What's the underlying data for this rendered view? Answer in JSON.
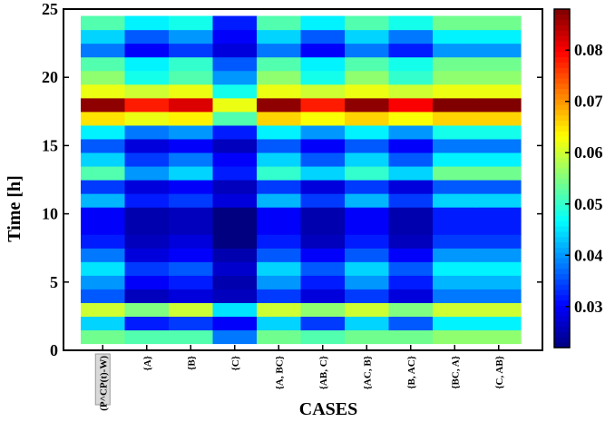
{
  "chart_data": {
    "type": "heatmap",
    "xlabel": "CASES",
    "ylabel": "Time [h]",
    "ylim": [
      0,
      25
    ],
    "y_ticks": [
      0,
      5,
      10,
      15,
      20,
      25
    ],
    "colorbar": {
      "colormap": "jet",
      "range": [
        0.022,
        0.088
      ],
      "ticks": [
        0.03,
        0.04,
        0.05,
        0.06,
        0.07,
        0.08
      ],
      "tick_labels": [
        "0.03",
        "0.04",
        "0.05",
        "0.06",
        "0.07",
        "0.08"
      ]
    },
    "categories": [
      "(P^CP(t)-W)",
      "{A}",
      "{B}",
      "{C}",
      "{A, BC}",
      "{AB, C}",
      "{AC, B}",
      "{B, AC}",
      "{BC, A}",
      "{C, AB}"
    ],
    "hours": [
      1,
      2,
      3,
      4,
      5,
      6,
      7,
      8,
      9,
      10,
      11,
      12,
      13,
      14,
      15,
      16,
      17,
      18,
      19,
      20,
      21,
      22,
      23,
      24
    ],
    "values": [
      [
        0.054,
        0.052,
        0.052,
        0.038,
        0.054,
        0.052,
        0.054,
        0.054,
        0.056,
        0.056
      ],
      [
        0.044,
        0.032,
        0.034,
        0.03,
        0.044,
        0.034,
        0.044,
        0.036,
        0.046,
        0.046
      ],
      [
        0.06,
        0.055,
        0.06,
        0.045,
        0.06,
        0.056,
        0.06,
        0.055,
        0.06,
        0.06
      ],
      [
        0.036,
        0.026,
        0.028,
        0.026,
        0.034,
        0.028,
        0.034,
        0.028,
        0.038,
        0.038
      ],
      [
        0.04,
        0.03,
        0.032,
        0.025,
        0.04,
        0.032,
        0.04,
        0.032,
        0.042,
        0.042
      ],
      [
        0.045,
        0.034,
        0.036,
        0.027,
        0.044,
        0.036,
        0.044,
        0.036,
        0.046,
        0.046
      ],
      [
        0.038,
        0.028,
        0.03,
        0.025,
        0.036,
        0.03,
        0.036,
        0.03,
        0.04,
        0.04
      ],
      [
        0.032,
        0.026,
        0.028,
        0.022,
        0.032,
        0.026,
        0.032,
        0.026,
        0.034,
        0.034
      ],
      [
        0.03,
        0.025,
        0.026,
        0.021,
        0.03,
        0.025,
        0.03,
        0.025,
        0.032,
        0.032
      ],
      [
        0.03,
        0.025,
        0.026,
        0.021,
        0.03,
        0.025,
        0.03,
        0.025,
        0.032,
        0.032
      ],
      [
        0.042,
        0.032,
        0.034,
        0.028,
        0.042,
        0.034,
        0.042,
        0.034,
        0.044,
        0.044
      ],
      [
        0.034,
        0.028,
        0.03,
        0.026,
        0.034,
        0.028,
        0.034,
        0.028,
        0.036,
        0.036
      ],
      [
        0.052,
        0.04,
        0.044,
        0.032,
        0.05,
        0.044,
        0.05,
        0.044,
        0.054,
        0.054
      ],
      [
        0.044,
        0.034,
        0.038,
        0.03,
        0.044,
        0.036,
        0.044,
        0.036,
        0.046,
        0.046
      ],
      [
        0.036,
        0.028,
        0.03,
        0.026,
        0.036,
        0.03,
        0.036,
        0.03,
        0.038,
        0.038
      ],
      [
        0.046,
        0.038,
        0.04,
        0.032,
        0.046,
        0.04,
        0.046,
        0.04,
        0.048,
        0.048
      ],
      [
        0.065,
        0.062,
        0.064,
        0.052,
        0.066,
        0.063,
        0.066,
        0.063,
        0.066,
        0.066
      ],
      [
        0.087,
        0.078,
        0.082,
        0.062,
        0.087,
        0.078,
        0.087,
        0.08,
        0.088,
        0.088
      ],
      [
        0.062,
        0.06,
        0.062,
        0.048,
        0.062,
        0.06,
        0.062,
        0.06,
        0.062,
        0.062
      ],
      [
        0.056,
        0.048,
        0.052,
        0.04,
        0.056,
        0.048,
        0.056,
        0.05,
        0.056,
        0.056
      ],
      [
        0.052,
        0.046,
        0.05,
        0.036,
        0.052,
        0.046,
        0.052,
        0.048,
        0.054,
        0.054
      ],
      [
        0.038,
        0.03,
        0.034,
        0.028,
        0.038,
        0.03,
        0.038,
        0.032,
        0.04,
        0.04
      ],
      [
        0.044,
        0.036,
        0.04,
        0.03,
        0.044,
        0.036,
        0.044,
        0.038,
        0.046,
        0.046
      ],
      [
        0.052,
        0.046,
        0.048,
        0.032,
        0.052,
        0.046,
        0.052,
        0.048,
        0.054,
        0.054
      ]
    ],
    "grid": false,
    "legend": "colorbar-right"
  }
}
